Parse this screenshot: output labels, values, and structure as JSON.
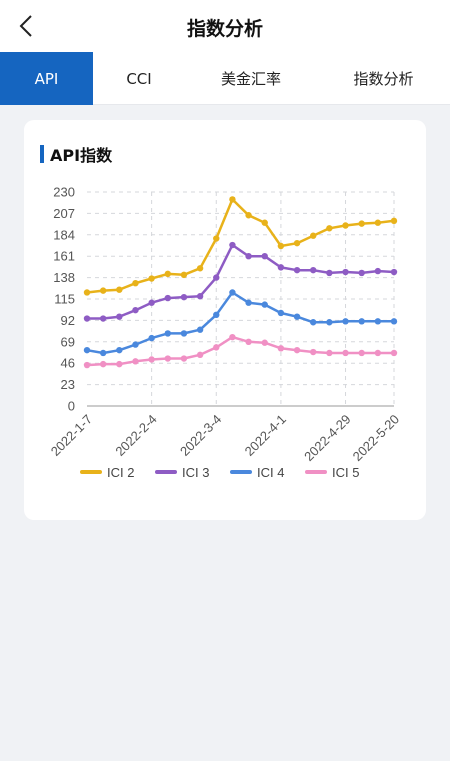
{
  "header": {
    "title": "指数分析",
    "back_icon": "chevron-left-icon"
  },
  "tabs": [
    {
      "label": "API",
      "active": true
    },
    {
      "label": "CCI",
      "active": false
    },
    {
      "label": "美金汇率",
      "active": false
    },
    {
      "label": "指数分析",
      "active": false
    }
  ],
  "card": {
    "title": "API指数"
  },
  "colors": {
    "accent": "#1565c0",
    "series": [
      "#e8b21a",
      "#8e5cc4",
      "#4a88dd",
      "#f090c4"
    ]
  },
  "chart_data": {
    "type": "line",
    "title": "",
    "xlabel": "",
    "ylabel": "",
    "ylim": [
      0,
      230
    ],
    "yticks": [
      0,
      23,
      46,
      69,
      92,
      115,
      138,
      161,
      184,
      207,
      230
    ],
    "x_tick_labels": [
      "2022-1-7",
      "2022-2-4",
      "2022-3-4",
      "2022-4-1",
      "2022-4-29",
      "2022-5-20"
    ],
    "x_tick_index": [
      0,
      4,
      8,
      12,
      16,
      19
    ],
    "x": [
      "2022-1-7",
      "2022-1-14",
      "2022-1-21",
      "2022-1-28",
      "2022-2-4",
      "2022-2-11",
      "2022-2-18",
      "2022-2-25",
      "2022-3-4",
      "2022-3-11",
      "2022-3-18",
      "2022-3-25",
      "2022-4-1",
      "2022-4-8",
      "2022-4-15",
      "2022-4-22",
      "2022-4-29",
      "2022-5-6",
      "2022-5-13",
      "2022-5-20"
    ],
    "grid": true,
    "legend_position": "bottom",
    "series": [
      {
        "name": "ICI 2",
        "values": [
          122,
          124,
          125,
          132,
          137,
          142,
          141,
          148,
          180,
          222,
          205,
          197,
          172,
          175,
          183,
          191,
          194,
          196,
          197,
          199
        ]
      },
      {
        "name": "ICI 3",
        "values": [
          94,
          94,
          96,
          103,
          111,
          116,
          117,
          118,
          138,
          173,
          161,
          161,
          149,
          146,
          146,
          143,
          144,
          143,
          145,
          144
        ]
      },
      {
        "name": "ICI 4",
        "values": [
          60,
          57,
          60,
          66,
          73,
          78,
          78,
          82,
          98,
          122,
          111,
          109,
          100,
          96,
          90,
          90,
          91,
          91,
          91,
          91
        ]
      },
      {
        "name": "ICI 5",
        "values": [
          44,
          45,
          45,
          48,
          50,
          51,
          51,
          55,
          63,
          74,
          69,
          68,
          62,
          60,
          58,
          57,
          57,
          57,
          57,
          57
        ]
      }
    ]
  }
}
